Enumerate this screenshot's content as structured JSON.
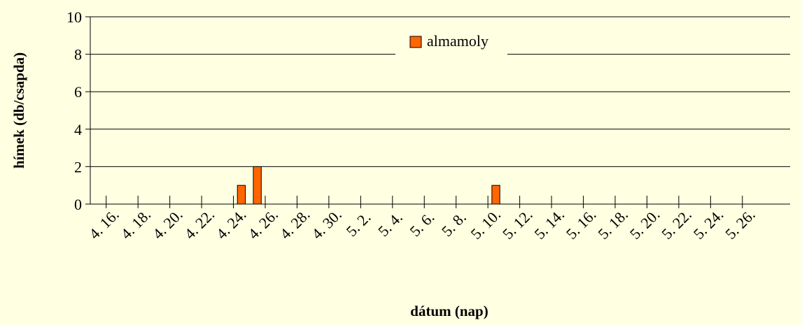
{
  "chart_data": {
    "type": "bar",
    "title": "",
    "xlabel": "dátum (nap)",
    "ylabel": "hímek (db/csapda)",
    "ylim": [
      0,
      10
    ],
    "yticks": [
      "0",
      "2",
      "4",
      "6",
      "8",
      "10"
    ],
    "x_tick_labels": [
      "4. 16.",
      "4. 18.",
      "4. 20.",
      "4. 22.",
      "4. 24.",
      "4. 26.",
      "4. 28.",
      "4. 30.",
      "5. 2.",
      "5. 4.",
      "5. 6.",
      "5. 8.",
      "5. 10.",
      "5. 12.",
      "5. 14.",
      "5. 16.",
      "5. 18.",
      "5. 20.",
      "5. 22.",
      "5. 24.",
      "5. 26."
    ],
    "x_range": [
      "4. 15.",
      "5. 28."
    ],
    "grid": true,
    "legend": "top-center",
    "series": [
      {
        "name": "almamoly",
        "color": "#FF6600",
        "points": [
          {
            "x": "4. 24.",
            "y": 1
          },
          {
            "x": "4. 25.",
            "y": 2
          },
          {
            "x": "5. 10.",
            "y": 1
          }
        ]
      }
    ]
  }
}
